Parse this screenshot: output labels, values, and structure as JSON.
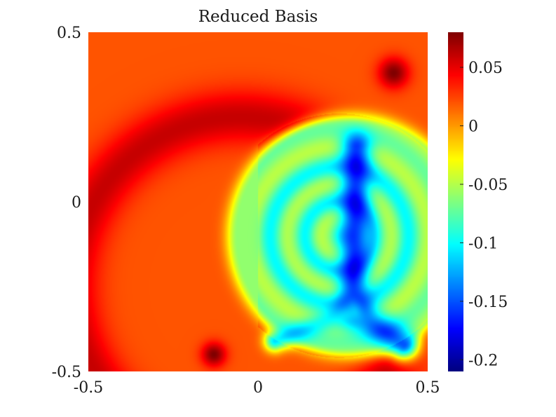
{
  "chart_data": {
    "type": "heatmap",
    "title": "Reduced Basis",
    "xlabel": "",
    "ylabel": "",
    "xlim": [
      -0.5,
      0.5
    ],
    "ylim": [
      -0.5,
      0.5
    ],
    "x_ticks": [
      "-0.5",
      "0",
      "0.5"
    ],
    "y_ticks": [
      "0.5",
      "0",
      "-0.5"
    ],
    "x_tick_values": [
      -0.5,
      0,
      0.5
    ],
    "y_tick_values": [
      0.5,
      0,
      -0.5
    ],
    "colormap": "jet",
    "clim": [
      -0.21,
      0.08
    ],
    "colorbar": {
      "ticks": [
        "0.05",
        "0",
        "-0.05",
        "-0.1",
        "-0.15",
        "-0.2"
      ],
      "tick_values": [
        0.05,
        0,
        -0.05,
        -0.1,
        -0.15,
        -0.2
      ],
      "placement": "right"
    },
    "background_value": 0.02,
    "features": [
      {
        "kind": "ring",
        "center": [
          -0.05,
          -0.25
        ],
        "radius": 0.5,
        "width": 0.09,
        "value": 0.06
      },
      {
        "kind": "blob",
        "center": [
          0.4,
          0.38
        ],
        "radius": 0.05,
        "value": 0.08
      },
      {
        "kind": "blob",
        "center": [
          -0.13,
          -0.45
        ],
        "radius": 0.04,
        "value": 0.08
      },
      {
        "kind": "region",
        "center": [
          0.27,
          -0.1
        ],
        "radius": 0.33,
        "value": -0.06
      },
      {
        "kind": "ring",
        "center": [
          0.24,
          -0.1
        ],
        "radius": 0.1,
        "width": 0.03,
        "value": -0.09
      },
      {
        "kind": "ring",
        "center": [
          0.24,
          -0.1
        ],
        "radius": 0.2,
        "width": 0.035,
        "value": -0.09
      },
      {
        "kind": "line",
        "from": [
          0.29,
          0.16
        ],
        "to": [
          0.28,
          -0.32
        ],
        "width": 0.05,
        "value": -0.17
      },
      {
        "kind": "line",
        "from": [
          0.28,
          -0.32
        ],
        "to": [
          0.43,
          -0.42
        ],
        "width": 0.05,
        "value": -0.15
      },
      {
        "kind": "line",
        "from": [
          0.28,
          -0.32
        ],
        "to": [
          0.05,
          -0.41
        ],
        "width": 0.035,
        "value": -0.11
      }
    ]
  }
}
